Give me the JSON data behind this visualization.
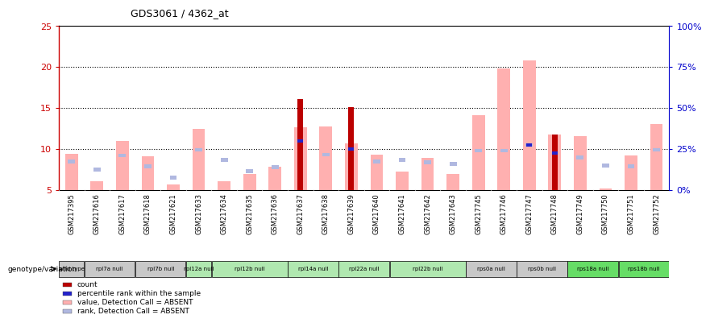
{
  "title": "GDS3061 / 4362_at",
  "samples": [
    "GSM217395",
    "GSM217616",
    "GSM217617",
    "GSM217618",
    "GSM217621",
    "GSM217633",
    "GSM217634",
    "GSM217635",
    "GSM217636",
    "GSM217637",
    "GSM217638",
    "GSM217639",
    "GSM217640",
    "GSM217641",
    "GSM217642",
    "GSM217643",
    "GSM217745",
    "GSM217746",
    "GSM217747",
    "GSM217748",
    "GSM217749",
    "GSM217750",
    "GSM217751",
    "GSM217752"
  ],
  "pink_values": [
    9.4,
    6.1,
    11.0,
    9.1,
    5.7,
    12.5,
    6.1,
    7.0,
    7.8,
    12.7,
    12.8,
    10.7,
    9.3,
    7.3,
    8.9,
    7.0,
    14.1,
    19.8,
    20.8,
    11.8,
    11.6,
    5.2,
    9.2,
    13.1
  ],
  "lightblue_values": [
    8.5,
    7.5,
    9.2,
    7.9,
    6.5,
    9.9,
    8.7,
    7.3,
    7.8,
    0,
    9.3,
    0,
    8.5,
    8.7,
    8.4,
    8.2,
    9.8,
    9.8,
    10.5,
    0,
    9.0,
    8.0,
    7.9,
    9.9
  ],
  "red_values": [
    0,
    0,
    0,
    0,
    0,
    0,
    0,
    0,
    0,
    16.1,
    0,
    15.1,
    0,
    0,
    0,
    0,
    0,
    0,
    0,
    11.8,
    0,
    0,
    0,
    0
  ],
  "blue_values": [
    0,
    0,
    0,
    0,
    0,
    0,
    0,
    0,
    0,
    11.0,
    0,
    10.0,
    0,
    0,
    0,
    0,
    0,
    0,
    10.5,
    9.5,
    0,
    0,
    0,
    0
  ],
  "genotypes": [
    {
      "label": "wild type",
      "samples": [
        "GSM217395"
      ],
      "color": "#c8c8c8"
    },
    {
      "label": "rpl7a null",
      "samples": [
        "GSM217616",
        "GSM217617"
      ],
      "color": "#c8c8c8"
    },
    {
      "label": "rpl7b null",
      "samples": [
        "GSM217618",
        "GSM217621"
      ],
      "color": "#c8c8c8"
    },
    {
      "label": "rpl12a null",
      "samples": [
        "GSM217633"
      ],
      "color": "#b0e8b0"
    },
    {
      "label": "rpl12b null",
      "samples": [
        "GSM217634",
        "GSM217635",
        "GSM217636"
      ],
      "color": "#b0e8b0"
    },
    {
      "label": "rpl14a null",
      "samples": [
        "GSM217637",
        "GSM217638"
      ],
      "color": "#b0e8b0"
    },
    {
      "label": "rpl22a null",
      "samples": [
        "GSM217639",
        "GSM217640"
      ],
      "color": "#b0e8b0"
    },
    {
      "label": "rpl22b null",
      "samples": [
        "GSM217641",
        "GSM217642",
        "GSM217643"
      ],
      "color": "#b0e8b0"
    },
    {
      "label": "rps0a null",
      "samples": [
        "GSM217745",
        "GSM217746"
      ],
      "color": "#c8c8c8"
    },
    {
      "label": "rps0b null",
      "samples": [
        "GSM217747",
        "GSM217748"
      ],
      "color": "#c8c8c8"
    },
    {
      "label": "rps18a null",
      "samples": [
        "GSM217749",
        "GSM217750"
      ],
      "color": "#66dd66"
    },
    {
      "label": "rps18b null",
      "samples": [
        "GSM217751",
        "GSM217752"
      ],
      "color": "#66dd66"
    }
  ],
  "ylim_left": [
    5,
    25
  ],
  "ylim_right": [
    0,
    100
  ],
  "yticks_left": [
    5,
    10,
    15,
    20,
    25
  ],
  "yticks_right": [
    0,
    25,
    50,
    75,
    100
  ],
  "ytick_labels_right": [
    "0%",
    "25%",
    "50%",
    "75%",
    "100%"
  ],
  "pink_color": "#ffb0b0",
  "lightblue_color": "#b0b8e0",
  "red_color": "#bb0000",
  "blue_color": "#2222cc",
  "left_axis_color": "#cc0000",
  "right_axis_color": "#0000cc",
  "background_color": "#ffffff",
  "grid_color": "#000000",
  "legend_items": [
    {
      "color": "#bb0000",
      "label": "count"
    },
    {
      "color": "#2222cc",
      "label": "percentile rank within the sample"
    },
    {
      "color": "#ffb0b0",
      "label": "value, Detection Call = ABSENT"
    },
    {
      "color": "#b0b8e0",
      "label": "rank, Detection Call = ABSENT"
    }
  ]
}
